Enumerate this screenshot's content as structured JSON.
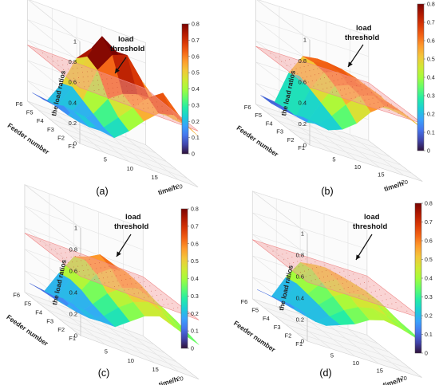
{
  "figure": {
    "annotation": [
      "load",
      "threshold"
    ],
    "z_axis_label": "the load ratios",
    "feeder_axis_label": "Feeder number",
    "time_axis_label": "time/h",
    "z_ticks": [
      "0",
      "0.2",
      "0.4",
      "0.6",
      "0.8",
      "1"
    ],
    "feeder_ticks": [
      "F1",
      "F2",
      "F3",
      "F4",
      "F5",
      "F6"
    ],
    "time_ticks": [
      "5",
      "10",
      "15",
      "20"
    ],
    "colorbar_ticks": [
      "0",
      "0.1",
      "0.2",
      "0.3",
      "0.4",
      "0.5",
      "0.6",
      "0.7",
      "0.8"
    ]
  },
  "colors": {
    "colormap": [
      "#30123b",
      "#4145ab",
      "#4675ed",
      "#39a2fc",
      "#1bcfd4",
      "#24eca6",
      "#61fc6c",
      "#a4fc3b",
      "#d1e834",
      "#f3c63a",
      "#fe9b2d",
      "#f36315",
      "#d93806",
      "#b11901",
      "#7a0402"
    ],
    "threshold_plane": "#f4a0a0",
    "threshold_dots": "#c0392b"
  },
  "chart_data": [
    {
      "caption": "(a)",
      "type": "surface",
      "x_name": "time/h",
      "y_name": "Feeder number",
      "z_name": "the load ratios",
      "x": [
        1,
        4,
        7,
        10,
        13,
        16,
        19,
        22,
        24
      ],
      "y": [
        "F1",
        "F2",
        "F3",
        "F4",
        "F5",
        "F6"
      ],
      "z": [
        [
          0.28,
          0.2,
          0.18,
          0.3,
          0.45,
          0.58,
          0.62,
          0.55,
          0.5
        ],
        [
          0.25,
          0.15,
          0.2,
          0.35,
          0.5,
          0.65,
          0.75,
          0.6,
          0.52
        ],
        [
          0.22,
          0.12,
          0.25,
          0.45,
          0.55,
          0.6,
          0.55,
          0.5,
          0.48
        ],
        [
          0.15,
          0.1,
          0.3,
          0.65,
          0.85,
          0.9,
          0.7,
          0.55,
          0.45
        ],
        [
          0.12,
          0.1,
          0.35,
          0.7,
          0.95,
          0.85,
          0.65,
          0.5,
          0.4
        ],
        [
          0.1,
          0.08,
          0.3,
          0.6,
          0.75,
          0.7,
          0.55,
          0.45,
          0.35
        ]
      ],
      "threshold": 0.55,
      "xlim": [
        0,
        24
      ],
      "zlim": [
        0,
        1
      ],
      "clim": [
        0,
        0.8
      ]
    },
    {
      "caption": "(b)",
      "type": "surface",
      "x_name": "time/h",
      "y_name": "Feeder number",
      "z_name": "the load ratios",
      "x": [
        1,
        4,
        7,
        10,
        13,
        16,
        19,
        22,
        24
      ],
      "y": [
        "F1",
        "F2",
        "F3",
        "F4",
        "F5",
        "F6"
      ],
      "z": [
        [
          0.22,
          0.2,
          0.25,
          0.35,
          0.5,
          0.6,
          0.6,
          0.55,
          0.5
        ],
        [
          0.2,
          0.18,
          0.3,
          0.45,
          0.58,
          0.62,
          0.6,
          0.55,
          0.5
        ],
        [
          0.15,
          0.12,
          0.35,
          0.55,
          0.6,
          0.62,
          0.58,
          0.52,
          0.48
        ],
        [
          0.12,
          0.1,
          0.4,
          0.6,
          0.65,
          0.62,
          0.6,
          0.55,
          0.45
        ],
        [
          0.1,
          0.1,
          0.45,
          0.62,
          0.66,
          0.64,
          0.6,
          0.5,
          0.4
        ],
        [
          0.1,
          0.08,
          0.4,
          0.6,
          0.62,
          0.6,
          0.55,
          0.45,
          0.35
        ]
      ],
      "threshold": 0.55,
      "xlim": [
        0,
        24
      ],
      "zlim": [
        0,
        1
      ],
      "clim": [
        0,
        0.8
      ]
    },
    {
      "caption": "(c)",
      "type": "surface",
      "x_name": "time/h",
      "y_name": "Feeder number",
      "z_name": "the load ratios",
      "x": [
        1,
        4,
        7,
        10,
        13,
        16,
        19,
        22,
        24
      ],
      "y": [
        "F1",
        "F2",
        "F3",
        "F4",
        "F5",
        "F6"
      ],
      "z": [
        [
          0.25,
          0.2,
          0.2,
          0.3,
          0.4,
          0.45,
          0.4,
          0.35,
          0.32
        ],
        [
          0.22,
          0.15,
          0.22,
          0.35,
          0.45,
          0.5,
          0.45,
          0.38,
          0.35
        ],
        [
          0.2,
          0.12,
          0.25,
          0.4,
          0.5,
          0.55,
          0.5,
          0.42,
          0.38
        ],
        [
          0.15,
          0.1,
          0.3,
          0.5,
          0.6,
          0.62,
          0.55,
          0.45,
          0.4
        ],
        [
          0.12,
          0.08,
          0.32,
          0.55,
          0.65,
          0.6,
          0.5,
          0.42,
          0.36
        ],
        [
          0.1,
          0.08,
          0.3,
          0.5,
          0.55,
          0.5,
          0.45,
          0.38,
          0.3
        ]
      ],
      "threshold": 0.55,
      "xlim": [
        0,
        24
      ],
      "zlim": [
        0,
        1
      ],
      "clim": [
        0,
        0.8
      ]
    },
    {
      "caption": "(d)",
      "type": "surface",
      "x_name": "time/h",
      "y_name": "Feeder number",
      "z_name": "the load ratios",
      "x": [
        1,
        4,
        7,
        10,
        13,
        16,
        19,
        22,
        24
      ],
      "y": [
        "F1",
        "F2",
        "F3",
        "F4",
        "F5",
        "F6"
      ],
      "z": [
        [
          0.25,
          0.2,
          0.25,
          0.3,
          0.38,
          0.42,
          0.4,
          0.36,
          0.33
        ],
        [
          0.22,
          0.16,
          0.25,
          0.35,
          0.42,
          0.45,
          0.42,
          0.38,
          0.35
        ],
        [
          0.2,
          0.14,
          0.28,
          0.4,
          0.47,
          0.5,
          0.46,
          0.4,
          0.36
        ],
        [
          0.16,
          0.12,
          0.3,
          0.45,
          0.52,
          0.54,
          0.5,
          0.44,
          0.38
        ],
        [
          0.13,
          0.1,
          0.32,
          0.5,
          0.55,
          0.52,
          0.48,
          0.42,
          0.35
        ],
        [
          0.1,
          0.08,
          0.3,
          0.48,
          0.5,
          0.48,
          0.44,
          0.38,
          0.3
        ]
      ],
      "threshold": 0.55,
      "xlim": [
        0,
        24
      ],
      "zlim": [
        0,
        1
      ],
      "clim": [
        0,
        0.8
      ]
    }
  ]
}
